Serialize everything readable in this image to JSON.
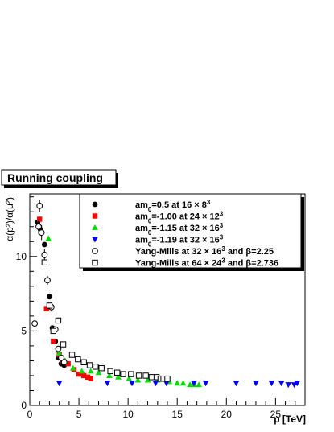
{
  "chart_data": {
    "type": "scatter",
    "title": "Running coupling",
    "xlabel": "p [TeV]",
    "ylabel": "α(p²)/α(μ²)",
    "xlim": [
      0,
      28
    ],
    "ylim": [
      0,
      14.2
    ],
    "xticks": [
      "0",
      "5",
      "10",
      "15",
      "20",
      "25"
    ],
    "yticks": [
      "0",
      "5",
      "10"
    ],
    "legend_position": "top-right",
    "grid": false,
    "series": [
      {
        "name": "am0=0.5 at 16×8³",
        "label_parts": [
          {
            "t": "am"
          },
          {
            "sub": "0"
          },
          {
            "t": "=0.5 at 16 × 8"
          },
          {
            "sup": "3"
          }
        ],
        "marker": "circle-filled",
        "color": "#000000",
        "points": [
          [
            0.8,
            12.3
          ],
          [
            1.1,
            11.8
          ],
          [
            1.5,
            10.8
          ],
          [
            2.0,
            7.3
          ],
          [
            2.3,
            5.2
          ],
          [
            2.6,
            4.3
          ],
          [
            2.9,
            3.2
          ],
          [
            3.2,
            2.8
          ],
          [
            3.5,
            2.7
          ]
        ]
      },
      {
        "name": "am0=-1.00 at 24×12³",
        "label_parts": [
          {
            "t": "am"
          },
          {
            "sub": "0"
          },
          {
            "t": "=-1.00 at 24 × 12"
          },
          {
            "sup": "3"
          }
        ],
        "marker": "square-filled",
        "color": "#ff0000",
        "points": [
          [
            1.0,
            12.5
          ],
          [
            1.7,
            6.5
          ],
          [
            2.4,
            4.3
          ],
          [
            3.0,
            3.4
          ],
          [
            3.4,
            3.0
          ],
          [
            3.9,
            2.8
          ],
          [
            4.5,
            2.4
          ],
          [
            5.0,
            2.1
          ],
          [
            5.5,
            2.0
          ],
          [
            5.9,
            1.9
          ],
          [
            6.2,
            1.8
          ]
        ]
      },
      {
        "name": "am0=-1.15 at 32×16³",
        "label_parts": [
          {
            "t": "am"
          },
          {
            "sub": "0"
          },
          {
            "t": "=-1.15 at 32 × 16"
          },
          {
            "sup": "3"
          }
        ],
        "marker": "triangle-up",
        "color": "#00dd00",
        "points": [
          [
            1.9,
            11.2
          ],
          [
            3.0,
            3.5
          ],
          [
            3.6,
            3.0
          ],
          [
            4.4,
            2.5
          ],
          [
            5.3,
            2.3
          ],
          [
            6.2,
            2.3
          ],
          [
            7.0,
            2.2
          ],
          [
            8.1,
            2.0
          ],
          [
            9.0,
            1.9
          ],
          [
            10.1,
            1.8
          ],
          [
            11.0,
            1.7
          ],
          [
            12.0,
            1.7
          ],
          [
            13.0,
            1.7
          ],
          [
            14.2,
            1.6
          ],
          [
            15.0,
            1.5
          ],
          [
            15.6,
            1.5
          ],
          [
            16.3,
            1.4
          ],
          [
            16.7,
            1.4
          ],
          [
            17.2,
            1.4
          ]
        ]
      },
      {
        "name": "am0=-1.19 at 32×16³",
        "label_parts": [
          {
            "t": "am"
          },
          {
            "sub": "0"
          },
          {
            "t": "=-1.19 at 32 × 16"
          },
          {
            "sup": "3"
          }
        ],
        "marker": "triangle-down",
        "color": "#0000ff",
        "points": [
          [
            3.0,
            1.5
          ],
          [
            7.9,
            1.5
          ],
          [
            10.4,
            1.5
          ],
          [
            12.8,
            1.5
          ],
          [
            13.9,
            1.5
          ],
          [
            16.7,
            1.5
          ],
          [
            17.9,
            1.5
          ],
          [
            21.0,
            1.5
          ],
          [
            23.0,
            1.5
          ],
          [
            24.6,
            1.5
          ],
          [
            25.6,
            1.5
          ],
          [
            26.3,
            1.4
          ],
          [
            26.9,
            1.4
          ],
          [
            27.2,
            1.5
          ]
        ]
      },
      {
        "name": "Yang-Mills at 32×16³ and β=2.25",
        "label_parts": [
          {
            "t": "Yang-Mills at 32 × 16"
          },
          {
            "sup": "3"
          },
          {
            "t": " and β=2.25"
          }
        ],
        "marker": "circle-open",
        "color": "#000000",
        "points": [
          [
            0.5,
            5.5
          ],
          [
            0.9,
            12.0
          ],
          [
            1.0,
            13.4
          ],
          [
            1.2,
            11.6
          ],
          [
            1.5,
            10.1
          ],
          [
            1.8,
            8.4
          ],
          [
            2.2,
            6.6
          ],
          [
            2.6,
            5.1
          ],
          [
            2.9,
            3.8
          ],
          [
            3.2,
            3.2
          ],
          [
            3.5,
            2.9
          ]
        ],
        "errors": [
          0.2,
          0.5,
          0.4,
          0.5,
          0.4,
          0.3,
          0.3,
          0.2,
          0.2,
          0.15,
          0.1
        ]
      },
      {
        "name": "Yang-Mills at 64×24³ and β=2.736",
        "label_parts": [
          {
            "t": "Yang-Mills at 64 × 24"
          },
          {
            "sup": "3"
          },
          {
            "t": " and β=2.736"
          }
        ],
        "marker": "square-open",
        "color": "#000000",
        "points": [
          [
            1.5,
            9.6
          ],
          [
            2.0,
            6.7
          ],
          [
            2.4,
            5.0
          ],
          [
            2.9,
            5.7
          ],
          [
            3.4,
            4.1
          ],
          [
            4.3,
            3.4
          ],
          [
            4.9,
            3.1
          ],
          [
            5.5,
            2.9
          ],
          [
            6.1,
            2.7
          ],
          [
            6.7,
            2.6
          ],
          [
            7.3,
            2.5
          ],
          [
            8.2,
            2.3
          ],
          [
            8.9,
            2.2
          ],
          [
            9.5,
            2.1
          ],
          [
            10.3,
            2.1
          ],
          [
            11.1,
            2.0
          ],
          [
            11.8,
            2.0
          ],
          [
            12.4,
            1.9
          ],
          [
            12.9,
            1.9
          ],
          [
            13.3,
            1.8
          ],
          [
            13.6,
            1.8
          ],
          [
            14.0,
            1.8
          ]
        ]
      }
    ]
  }
}
